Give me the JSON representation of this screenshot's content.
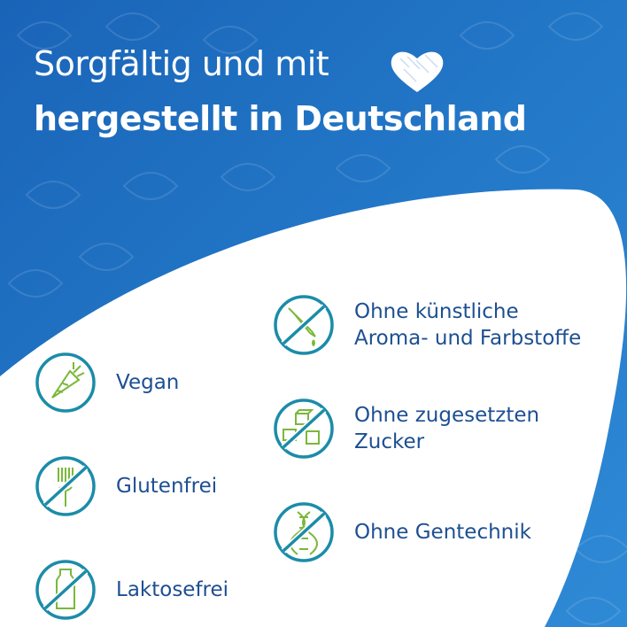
{
  "header": {
    "line1": "Sorgfältig und mit",
    "line2": "hergestellt in Deutschland",
    "heart_icon": "heart-icon"
  },
  "colors": {
    "background_blue": "#2378c8",
    "circle_teal": "#1b8ca8",
    "icon_green": "#7ab83a",
    "text_blue": "#1d4f92"
  },
  "features_left": [
    {
      "label": "Vegan",
      "icon": "carrot-icon",
      "crossed": false
    },
    {
      "label": "Glutenfrei",
      "icon": "wheat-icon",
      "crossed": true
    },
    {
      "label": "Laktosefrei",
      "icon": "milk-bottle-icon",
      "crossed": true
    }
  ],
  "features_right": [
    {
      "label": "Ohne künstliche\nAroma- und Farbstoffe",
      "icon": "dropper-icon",
      "crossed": true
    },
    {
      "label": "Ohne zugesetzten\nZucker",
      "icon": "sugar-cubes-icon",
      "crossed": true
    },
    {
      "label": "Ohne Gentechnik",
      "icon": "dna-icon",
      "crossed": true
    }
  ]
}
